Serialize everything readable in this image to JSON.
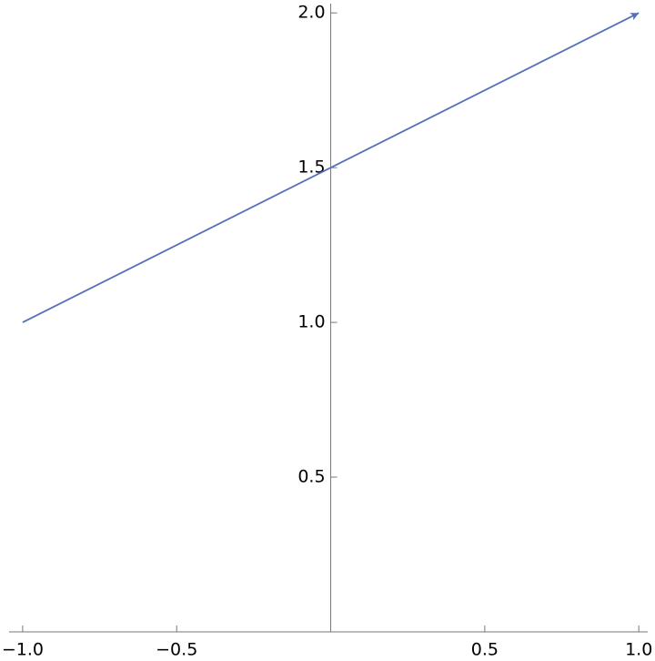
{
  "chart_data": {
    "type": "arrow",
    "x": [
      -1,
      1
    ],
    "values": [
      1,
      2
    ],
    "color": "#5470b8",
    "xlim": [
      -1.044,
      1.029
    ],
    "ylim": [
      0,
      2.03
    ],
    "xticks": [
      {
        "value": -1,
        "label": "−1.0"
      },
      {
        "value": -0.5,
        "label": "−0.5"
      },
      0.5,
      {
        "value": 1,
        "label": "1.0"
      }
    ],
    "yticks": [
      0.5,
      {
        "value": 1,
        "label": "1.0"
      },
      1.5,
      {
        "value": 2,
        "label": "2.0"
      }
    ]
  }
}
